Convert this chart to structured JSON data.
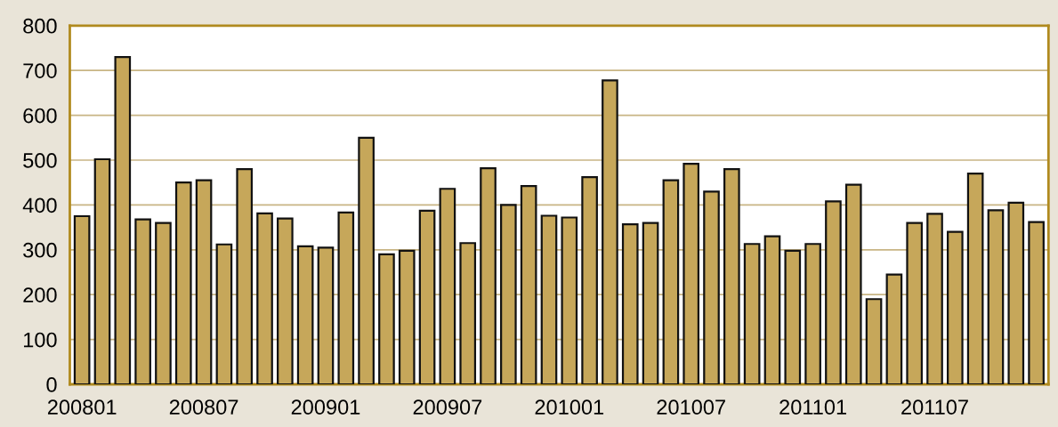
{
  "chart_data": {
    "type": "bar",
    "categories": [
      "200801",
      null,
      null,
      null,
      null,
      null,
      "200807",
      null,
      null,
      null,
      null,
      null,
      "200901",
      null,
      null,
      null,
      null,
      null,
      "200907",
      null,
      null,
      null,
      null,
      null,
      "201001",
      null,
      null,
      null,
      null,
      null,
      "201007",
      null,
      null,
      null,
      null,
      null,
      "201101",
      null,
      null,
      null,
      null,
      null,
      "201107",
      null,
      null,
      null,
      null,
      null
    ],
    "values": [
      375,
      502,
      730,
      368,
      360,
      450,
      455,
      312,
      480,
      381,
      370,
      308,
      305,
      383,
      550,
      290,
      298,
      387,
      436,
      315,
      482,
      400,
      442,
      376,
      372,
      462,
      678,
      357,
      360,
      455,
      492,
      430,
      480,
      313,
      330,
      298,
      313,
      408,
      445,
      190,
      245,
      360,
      380,
      340,
      470,
      388,
      405,
      362
    ],
    "color": "#c6a75a",
    "ylim": [
      0,
      800
    ],
    "yticks": [
      0,
      100,
      200,
      300,
      400,
      500,
      600,
      700,
      800
    ],
    "grid": "y"
  }
}
